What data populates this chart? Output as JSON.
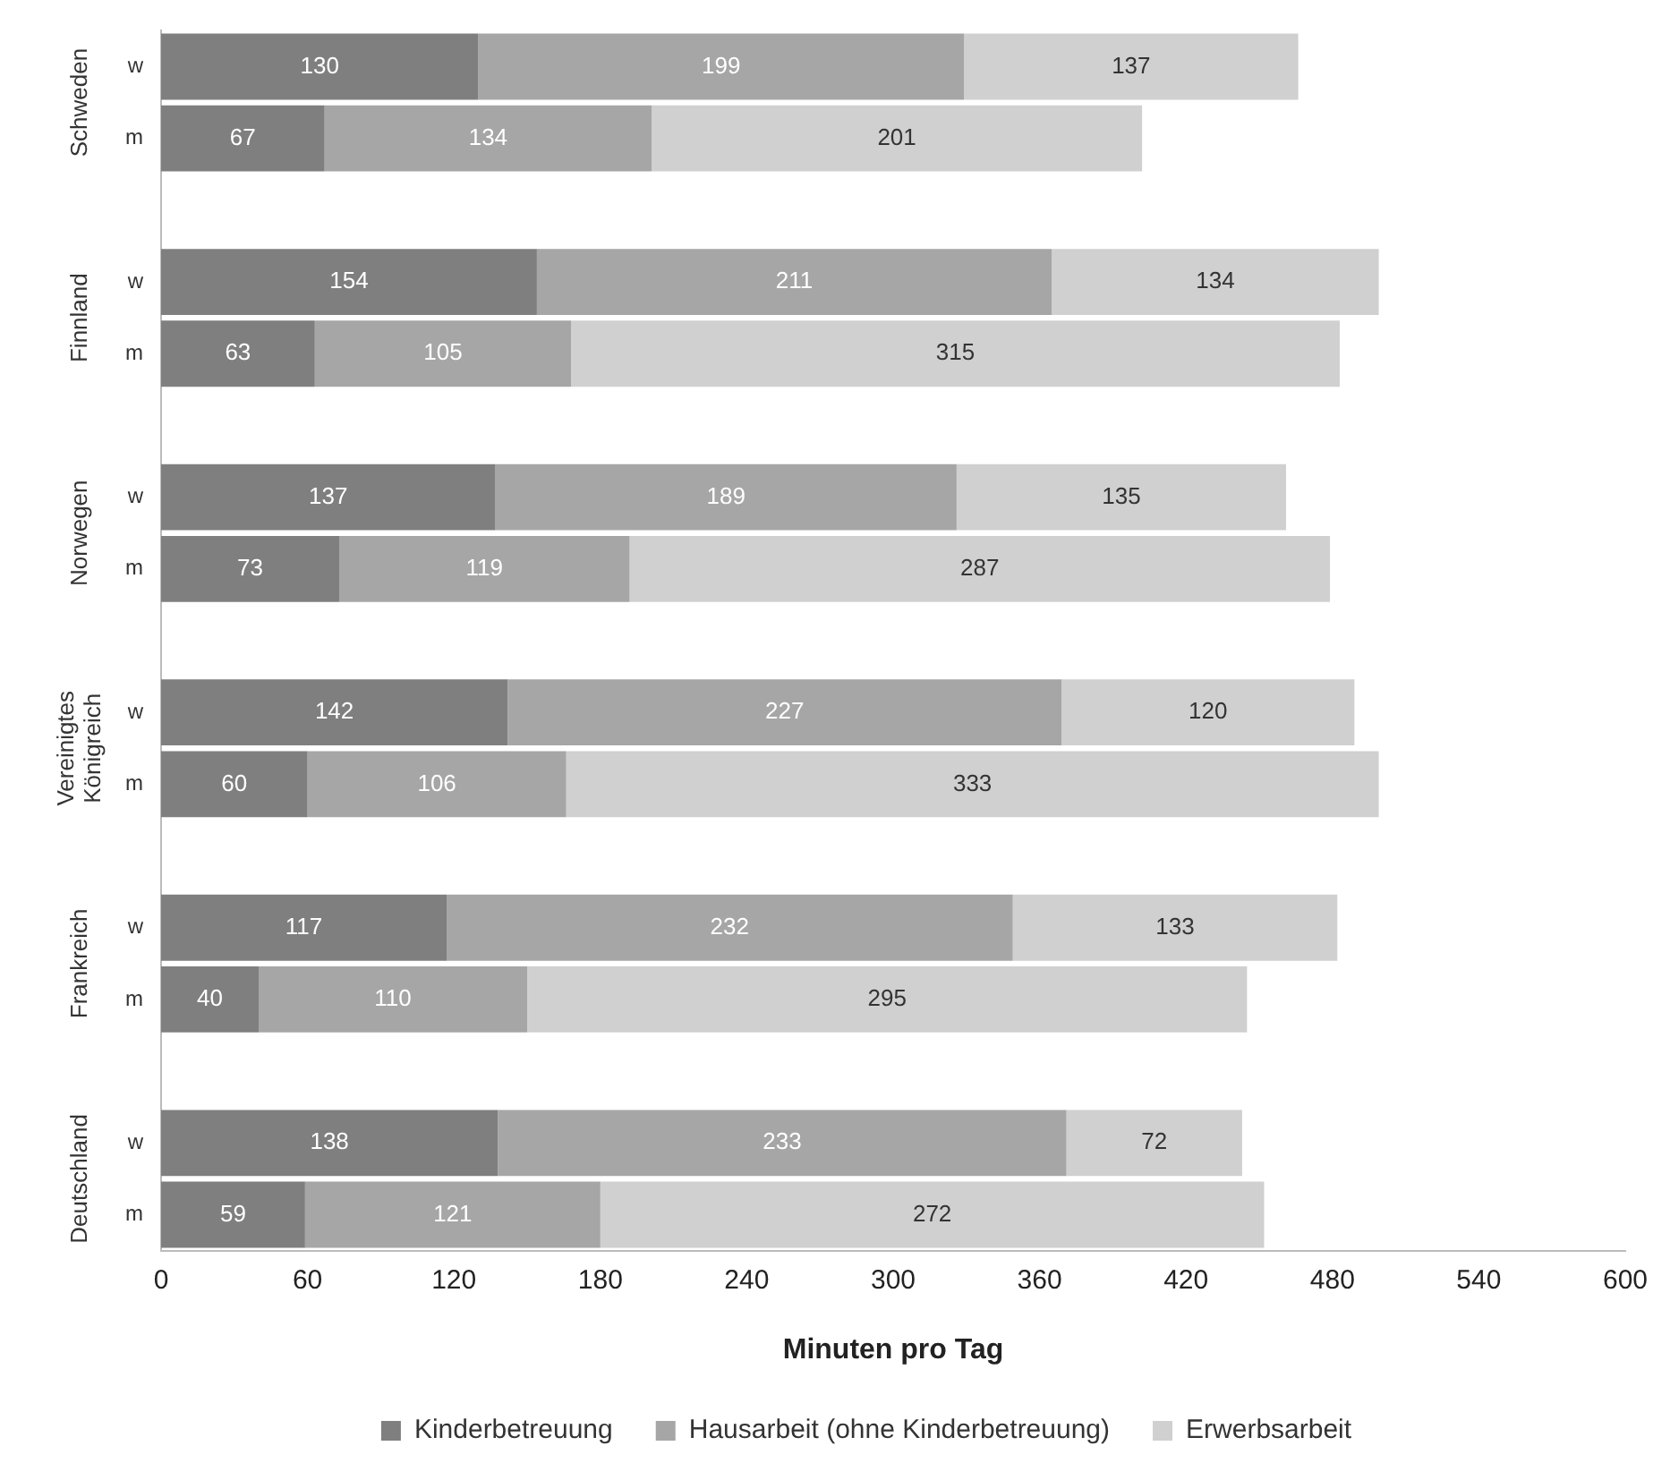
{
  "chart_data": {
    "type": "bar",
    "orientation": "horizontal",
    "stacked": true,
    "data_labels": true,
    "grid": false,
    "legend": "bottom",
    "categories": [
      "w",
      "m",
      null,
      "w",
      "m",
      null,
      "w",
      "m",
      null,
      "w",
      "m",
      null,
      "w",
      "m",
      null,
      "w",
      "m"
    ],
    "series": [
      {
        "name": "Kinderbetreuung",
        "color": "#7f7f7f",
        "values": [
          130,
          67,
          null,
          154,
          63,
          null,
          137,
          73,
          null,
          142,
          60,
          null,
          117,
          40,
          null,
          138,
          59
        ]
      },
      {
        "name": "Hausarbeit (ohne Kinderbetreuung)",
        "color": "#a6a6a6",
        "values": [
          199,
          134,
          null,
          211,
          105,
          null,
          189,
          119,
          null,
          227,
          106,
          null,
          232,
          110,
          null,
          233,
          121
        ]
      },
      {
        "name": "Erwerbsarbeit",
        "color": "#d0d0d0",
        "values": [
          137,
          201,
          null,
          134,
          315,
          null,
          135,
          287,
          null,
          120,
          333,
          null,
          133,
          295,
          null,
          72,
          272
        ]
      }
    ],
    "xlim": [
      0,
      600
    ],
    "xticks": [
      0,
      60,
      120,
      180,
      240,
      300,
      360,
      420,
      480,
      540,
      600
    ],
    "xlabel": "Minuten pro Tag",
    "annotations": [
      "Schweden",
      "Finnland",
      "Norwegen",
      "Vereinigtes Königreich",
      "Frankreich",
      "Deutschland"
    ]
  }
}
